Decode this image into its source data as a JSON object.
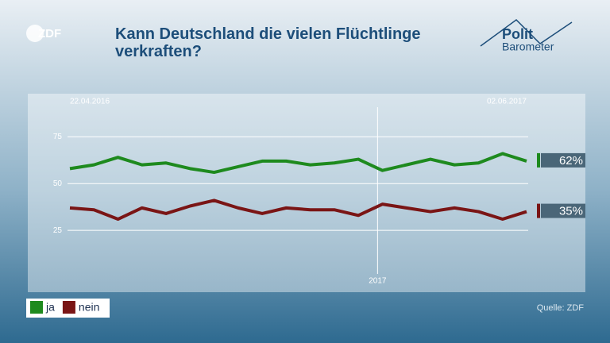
{
  "chart_data": {
    "type": "line",
    "title": "Kann Deutschland die vielen Flüchtlinge verkraften?",
    "channel_logo": "ZDF",
    "program_logo": [
      "Polit",
      "Barometer"
    ],
    "source": "Quelle: ZDF",
    "categories": [
      "22.04.2016",
      null,
      null,
      null,
      null,
      null,
      null,
      null,
      null,
      null,
      null,
      null,
      null,
      null,
      null,
      null,
      null,
      null,
      null,
      "02.06.2017"
    ],
    "annotation": "2017",
    "series": [
      {
        "name": "ja",
        "color": "#1e8a1e",
        "values": [
          58,
          60,
          64,
          60,
          61,
          58,
          56,
          59,
          62,
          62,
          60,
          61,
          63,
          57,
          60,
          63,
          60,
          61,
          66,
          62
        ],
        "end_label": "62%"
      },
      {
        "name": "nein",
        "color": "#7a1515",
        "values": [
          37,
          36,
          31,
          37,
          34,
          38,
          41,
          37,
          34,
          37,
          36,
          36,
          33,
          39,
          37,
          35,
          37,
          35,
          31,
          35
        ],
        "end_label": "35%"
      }
    ],
    "ylim": [
      -8,
      98
    ],
    "yticks": [
      25,
      50,
      75
    ],
    "grid": true
  }
}
